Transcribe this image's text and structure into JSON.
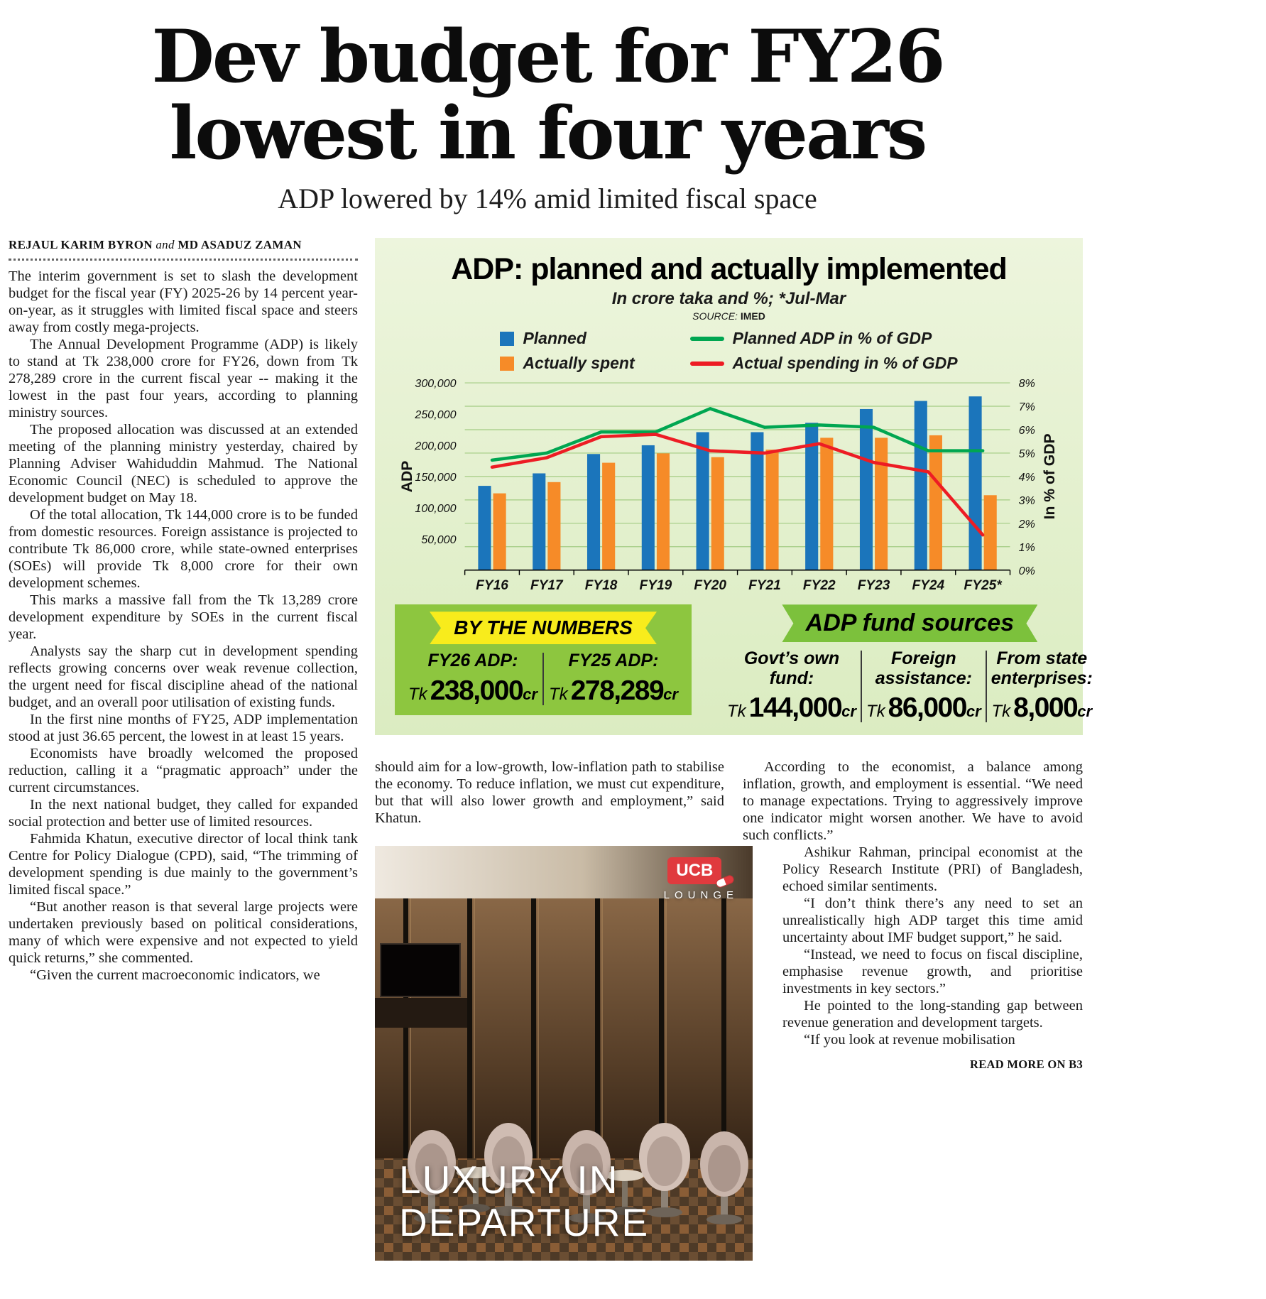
{
  "masthead": {
    "headline_line1": "Dev budget for FY26",
    "headline_line2": "lowest in four years",
    "subheadline": "ADP lowered by 14% amid limited fiscal space"
  },
  "byline": {
    "author1": "REJAUL KARIM BYRON",
    "connector": "and",
    "author2": "MD ASADUZ ZAMAN"
  },
  "article": {
    "left_column": [
      "The interim government is set to slash the development budget for the fiscal year (FY) 2025-26 by 14 percent year-on-year, as it struggles with limited fiscal space and steers away from costly mega-projects.",
      "The Annual Development Programme (ADP) is likely to stand at Tk 238,000 crore for FY26, down from Tk 278,289 crore in the current fiscal year -- making it the lowest in the past four years, according to planning ministry sources.",
      "The proposed allocation was discussed at an extended meeting of the planning ministry yesterday, chaired by Planning Adviser Wahiduddin Mahmud. The National Economic Council (NEC) is scheduled to approve the development budget on May 18.",
      "Of the total allocation, Tk 144,000 crore is to be funded from domestic resources. Foreign assistance is projected to contribute Tk 86,000 crore, while state-owned enterprises (SOEs) will provide Tk 8,000 crore for their own development schemes.",
      "This marks a massive fall from the Tk 13,289 crore development expenditure by SOEs in the current fiscal year.",
      "Analysts say the sharp cut in development spending reflects growing concerns over weak revenue collection, the urgent need for fiscal discipline ahead of the national budget, and an overall poor utilisation of existing funds.",
      "In the first nine months of FY25, ADP implementation stood at just 36.65 percent, the lowest in at least 15 years.",
      "Economists have broadly welcomed the proposed reduction, calling it a “pragmatic approach” under the current circumstances.",
      "In the next national budget, they called for expanded social protection and better use of limited resources.",
      "Fahmida Khatun, executive director of local think tank Centre for Policy Dialogue (CPD), said, “The trimming of development spending is due mainly to the government’s limited fiscal space.”",
      "“But another reason is that several large projects were undertaken previously based on political considerations, many of which were expensive and not expected to yield quick returns,” she commented.",
      "“Given the current macroeconomic indicators, we"
    ],
    "middle_column": "should aim for a low-growth, low-inflation path to stabilise the economy. To reduce inflation, we must cut expenditure, but that will also lower growth and employment,” said Khatun.",
    "right_column_lead": "According to the economist, a balance among inflation, growth, and employment is essential. “We need to manage expectations. Trying to aggressively improve one indicator might worsen another. We have to avoid such conflicts.”",
    "right_column": [
      "Ashikur Rahman, principal economist at the Policy Research Institute (PRI) of Bangladesh, echoed similar sentiments.",
      "“I don’t think there’s any need to set an unrealistically high ADP target this time amid uncertainty about IMF budget support,” he said.",
      "“Instead, we need to focus on fiscal discipline, emphasise revenue growth, and prioritise investments in key sectors.”",
      "He pointed to the long-standing gap between revenue generation and development targets.",
      "“If you look at revenue mobilisation"
    ],
    "read_more": "READ MORE ON B3"
  },
  "infographic": {
    "title": "ADP: planned and actually implemented",
    "subtitle": "In crore taka and %; *Jul-Mar",
    "source_label": "SOURCE:",
    "source_value": "IMED",
    "by_the_numbers": {
      "title": "BY THE NUMBERS",
      "stats": [
        {
          "label": "FY26 ADP:",
          "prefix": "Tk",
          "value": "238,000",
          "suffix": "cr"
        },
        {
          "label": "FY25 ADP:",
          "prefix": "Tk",
          "value": "278,289",
          "suffix": "cr"
        }
      ]
    },
    "fund_sources": {
      "title": "ADP fund sources",
      "stats": [
        {
          "label": "Govt’s own fund:",
          "prefix": "Tk",
          "value": "144,000",
          "suffix": "cr"
        },
        {
          "label": "Foreign assistance:",
          "prefix": "Tk",
          "value": "86,000",
          "suffix": "cr"
        },
        {
          "label": "From state enterprises:",
          "prefix": "Tk",
          "value": "8,000",
          "suffix": "cr"
        }
      ]
    }
  },
  "chart_data": {
    "type": "bar",
    "title": "ADP: planned and actually implemented",
    "subtitle": "In crore taka and %; *Jul-Mar",
    "categories": [
      "FY16",
      "FY17",
      "FY18",
      "FY19",
      "FY20",
      "FY21",
      "FY22",
      "FY23",
      "FY24",
      "FY25*"
    ],
    "bar_series": [
      {
        "name": "Planned",
        "color": "#1b75bb",
        "values": [
          135000,
          155000,
          186000,
          200000,
          221000,
          221000,
          236000,
          258000,
          271000,
          278289
        ]
      },
      {
        "name": "Actually spent",
        "color": "#f68b28",
        "values": [
          123000,
          141000,
          172000,
          187000,
          181000,
          193000,
          212000,
          212000,
          216000,
          120000
        ]
      }
    ],
    "line_series": [
      {
        "name": "Planned ADP in % of GDP",
        "color": "#00a651",
        "values": [
          4.7,
          5.0,
          5.9,
          5.9,
          6.9,
          6.1,
          6.2,
          6.1,
          5.1,
          5.1
        ]
      },
      {
        "name": "Actual spending in  % of GDP",
        "color": "#ed1c24",
        "values": [
          4.4,
          4.8,
          5.7,
          5.8,
          5.1,
          5.0,
          5.4,
          4.6,
          4.2,
          1.5
        ]
      }
    ],
    "left_axis": {
      "title": "ADP",
      "min": 0,
      "max": 300000,
      "tick_step": 50000
    },
    "right_axis": {
      "title": "In % of GDP",
      "min": 0,
      "max": 8,
      "tick_step": 1
    },
    "grid": true,
    "legend_position": "top"
  },
  "ad": {
    "brand": "UCB",
    "brand_sub": "LOUNGE",
    "caption_line1": "LUXURY IN",
    "caption_line2": "DEPARTURE"
  }
}
